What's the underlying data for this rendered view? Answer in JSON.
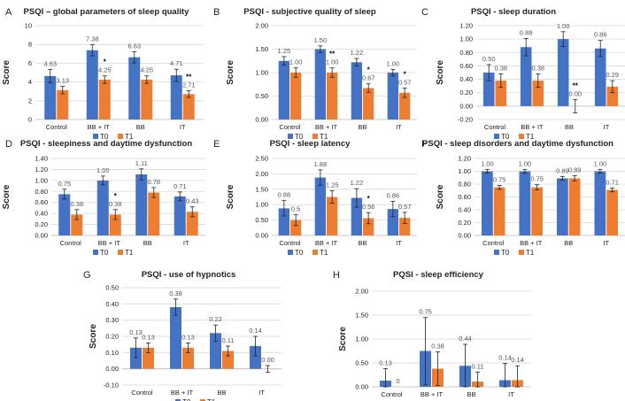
{
  "colors": {
    "T0": "#4472c4",
    "T1": "#ed7d31"
  },
  "chart_data": [
    {
      "type": "bar",
      "letter": "A",
      "title": "PSQI – global parameters of sleep quality",
      "ylabel": "Score",
      "ylim": [
        0,
        10
      ],
      "ticks": [
        0,
        2,
        4,
        6,
        8,
        10
      ],
      "tick_labels": [
        "0",
        "2",
        "4",
        "6",
        "8",
        "10"
      ],
      "categories": [
        "Control",
        "BB + IT",
        "BB",
        "IT"
      ],
      "series": [
        {
          "name": "T0",
          "values": [
            4.63,
            7.38,
            6.63,
            4.71
          ],
          "labels": [
            "4.63",
            "7.38",
            "6.63",
            "4.71"
          ],
          "err": [
            0.7,
            0.6,
            0.6,
            0.65
          ]
        },
        {
          "name": "T1",
          "values": [
            3.13,
            4.25,
            4.25,
            2.71
          ],
          "labels": [
            "3.13",
            "4.25",
            "4.25",
            "2.71"
          ],
          "err": [
            0.4,
            0.4,
            0.4,
            0.35
          ]
        }
      ],
      "annotations": [
        "",
        "*",
        "",
        "**"
      ]
    },
    {
      "type": "bar",
      "letter": "B",
      "title": "PSQI - subjective quality of sleep",
      "ylabel": "Score",
      "ylim": [
        0,
        2
      ],
      "ticks": [
        0,
        0.5,
        1,
        1.5,
        2
      ],
      "tick_labels": [
        "0.00",
        "0.50",
        "1.00",
        "1.50",
        "2.00"
      ],
      "categories": [
        "Control",
        "BB + IT",
        "BB",
        "IT"
      ],
      "series": [
        {
          "name": "T0",
          "values": [
            1.25,
            1.5,
            1.22,
            1.0
          ],
          "labels": [
            "1.25",
            "1.50",
            "1.22",
            "1.00"
          ],
          "err": [
            0.09,
            0.07,
            0.08,
            0.07
          ]
        },
        {
          "name": "T1",
          "values": [
            1.0,
            1.0,
            0.67,
            0.57
          ],
          "labels": [
            "1.00",
            "1.00",
            "0.67",
            "0.57"
          ],
          "err": [
            0.1,
            0.1,
            0.09,
            0.1
          ]
        }
      ],
      "annotations": [
        "",
        "**",
        "*",
        "*"
      ]
    },
    {
      "type": "bar",
      "letter": "C",
      "title": "PSQI - sleep duration",
      "ylabel": "Score",
      "ylim": [
        -0.2,
        1.2
      ],
      "ticks": [
        -0.2,
        0,
        0.2,
        0.4,
        0.6,
        0.8,
        1.0,
        1.2
      ],
      "tick_labels": [
        "-0.20",
        "0.00",
        "0.20",
        "0.40",
        "0.60",
        "0.80",
        "1.00",
        "1.20"
      ],
      "categories": [
        "Control",
        "BB + IT",
        "BB",
        "IT"
      ],
      "series": [
        {
          "name": "T0",
          "values": [
            0.5,
            0.88,
            1.0,
            0.86
          ],
          "labels": [
            "0.50",
            "0.88",
            "1.00",
            "0.86"
          ],
          "err": [
            0.12,
            0.13,
            0.11,
            0.12
          ]
        },
        {
          "name": "T1",
          "values": [
            0.38,
            0.38,
            0.0,
            0.29
          ],
          "labels": [
            "0.38",
            "0.38",
            "0.00",
            "0.29"
          ],
          "err": [
            0.1,
            0.1,
            0.1,
            0.09
          ]
        }
      ],
      "annotations": [
        "",
        "",
        "**",
        ""
      ]
    },
    {
      "type": "bar",
      "letter": "D",
      "title": "PSQI - sleepiness and daytime dysfunction",
      "ylabel": "Score",
      "ylim": [
        0,
        1.4
      ],
      "ticks": [
        0,
        0.2,
        0.4,
        0.6,
        0.8,
        1.0,
        1.2,
        1.4
      ],
      "tick_labels": [
        "0.00",
        "0.20",
        "0.40",
        "0.60",
        "0.80",
        "1.00",
        "1.20",
        "1.40"
      ],
      "categories": [
        "Control",
        "BB + IT",
        "BB",
        "IT"
      ],
      "series": [
        {
          "name": "T0",
          "values": [
            0.75,
            1.0,
            1.11,
            0.71
          ],
          "labels": [
            "0.75",
            "1.00",
            "1.11",
            "0.71"
          ],
          "err": [
            0.09,
            0.08,
            0.1,
            0.08
          ]
        },
        {
          "name": "T1",
          "values": [
            0.38,
            0.38,
            0.78,
            0.43
          ],
          "labels": [
            "0.38",
            "0.38",
            "0.78",
            "0.43"
          ],
          "err": [
            0.09,
            0.09,
            0.09,
            0.09
          ]
        }
      ],
      "annotations": [
        "",
        "*",
        "",
        ""
      ]
    },
    {
      "type": "bar",
      "letter": "E",
      "title": "PSQI - sleep latency",
      "ylabel": "Score",
      "ylim": [
        0,
        2.5
      ],
      "ticks": [
        0,
        0.5,
        1,
        1.5,
        2,
        2.5
      ],
      "tick_labels": [
        "0.00",
        "0.50",
        "1.00",
        "1.50",
        "2.00",
        "2.50"
      ],
      "categories": [
        "Control",
        "BB + IT",
        "BB",
        "IT"
      ],
      "series": [
        {
          "name": "T0",
          "values": [
            0.88,
            1.88,
            1.22,
            0.86
          ],
          "labels": [
            "0.88",
            "1.88",
            "1.22",
            "0.86"
          ],
          "err": [
            0.25,
            0.25,
            0.3,
            0.25
          ]
        },
        {
          "name": "T1",
          "values": [
            0.5,
            1.25,
            0.56,
            0.57
          ],
          "labels": [
            "0.5",
            "1.25",
            "0.56",
            "0.57"
          ],
          "err": [
            0.18,
            0.2,
            0.18,
            0.18
          ]
        }
      ],
      "annotations": [
        "",
        "",
        "*",
        ""
      ]
    },
    {
      "type": "bar",
      "letter": "F",
      "title": "PSQI - sleep disorders and daytime dysfunction",
      "ylabel": "Score",
      "ylim": [
        0,
        1.2
      ],
      "ticks": [
        0,
        0.2,
        0.4,
        0.6,
        0.8,
        1.0,
        1.2
      ],
      "tick_labels": [
        "0.00",
        "0.20",
        "0.40",
        "0.60",
        "0.80",
        "1.00",
        "1.20"
      ],
      "categories": [
        "Control",
        "BB + IT",
        "BB",
        "IT"
      ],
      "series": [
        {
          "name": "T0",
          "values": [
            1.0,
            1.0,
            0.89,
            1.0
          ],
          "labels": [
            "1.00",
            "1.00",
            "0.89",
            "1.00"
          ],
          "err": [
            0.03,
            0.03,
            0.03,
            0.03
          ]
        },
        {
          "name": "T1",
          "values": [
            0.75,
            0.75,
            0.89,
            0.71
          ],
          "labels": [
            "0.75",
            "0.75",
            "0.89",
            "0.71"
          ],
          "err": [
            0.03,
            0.04,
            0.04,
            0.03
          ]
        }
      ],
      "annotations": [
        "",
        "",
        "",
        ""
      ]
    },
    {
      "type": "bar",
      "letter": "G",
      "title": "PSQI - use of hypnotics",
      "ylabel": "Score",
      "ylim": [
        -0.1,
        0.5
      ],
      "ticks": [
        -0.1,
        0,
        0.1,
        0.2,
        0.3,
        0.4,
        0.5
      ],
      "tick_labels": [
        "-0.10",
        "0.00",
        "0.10",
        "0.20",
        "0.30",
        "0.40",
        "0.50"
      ],
      "categories": [
        "Control",
        "BB + IT",
        "BB",
        "IT"
      ],
      "series": [
        {
          "name": "T0",
          "values": [
            0.13,
            0.38,
            0.22,
            0.14
          ],
          "labels": [
            "0.13",
            "0.38",
            "0.22",
            "0.14"
          ],
          "err": [
            0.06,
            0.05,
            0.05,
            0.06
          ]
        },
        {
          "name": "T1",
          "values": [
            0.13,
            0.13,
            0.11,
            0.0
          ],
          "labels": [
            "0.13",
            "0.13",
            "0.11",
            "0.00"
          ],
          "err": [
            0.03,
            0.03,
            0.03,
            0.02
          ]
        }
      ],
      "annotations": [
        "",
        "",
        "",
        ""
      ]
    },
    {
      "type": "bar",
      "letter": "H",
      "title": "PQSI - sleep efficiency",
      "ylabel": "Score",
      "ylim": [
        0,
        2
      ],
      "ticks": [
        0,
        0.5,
        1,
        1.5,
        2
      ],
      "tick_labels": [
        "0.00",
        "0.50",
        "1.00",
        "1.50",
        "2.00"
      ],
      "categories": [
        "Control",
        "BB + IT",
        "BB",
        "IT"
      ],
      "series": [
        {
          "name": "T0",
          "values": [
            0.13,
            0.75,
            0.44,
            0.14
          ],
          "labels": [
            "0.13",
            "0.75",
            "0.44",
            "0.14"
          ],
          "err": [
            0.25,
            0.7,
            0.45,
            0.35
          ]
        },
        {
          "name": "T1",
          "values": [
            0.0,
            0.38,
            0.11,
            0.14
          ],
          "labels": [
            "0",
            "0.38",
            "0.11",
            "0.14"
          ],
          "err": [
            0.0,
            0.35,
            0.2,
            0.3
          ]
        }
      ],
      "annotations": [
        "",
        "",
        "",
        ""
      ]
    }
  ]
}
